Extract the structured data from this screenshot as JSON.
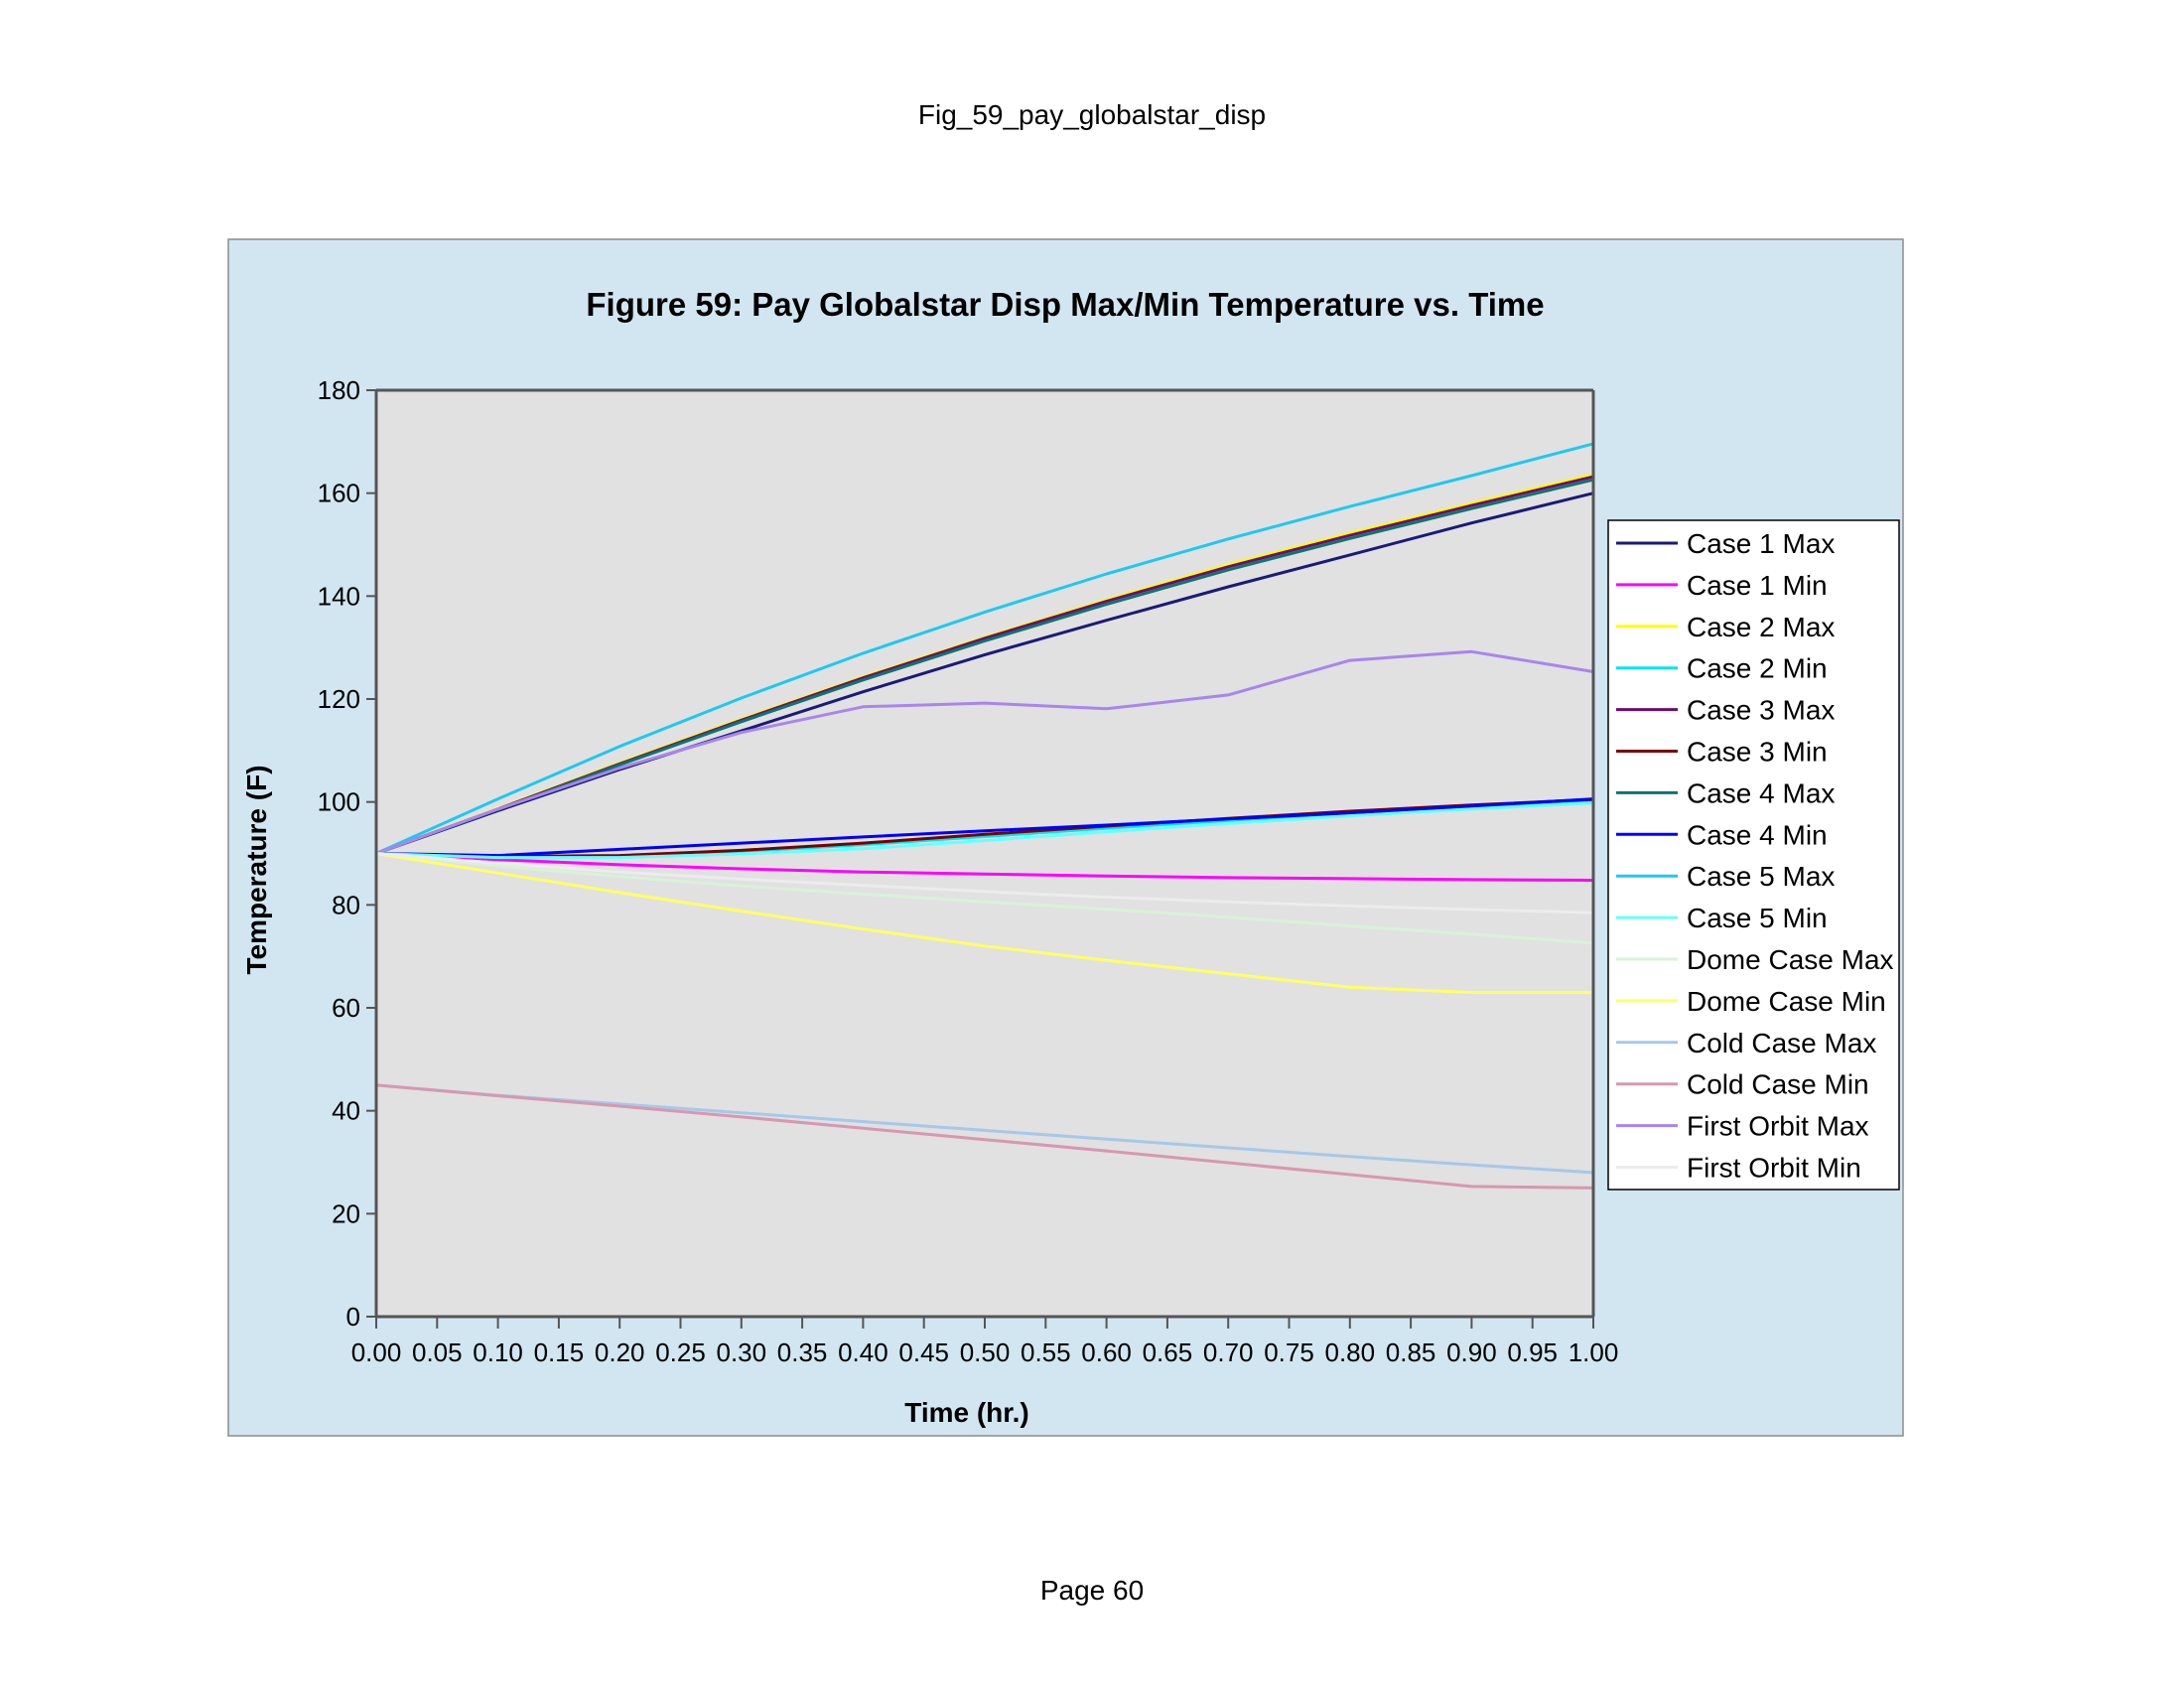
{
  "document": {
    "header": "Fig_59_pay_globalstar_disp",
    "footer": "Page 60"
  },
  "chart_data": {
    "type": "line",
    "title": "Figure 59: Pay Globalstar Disp Max/Min Temperature vs. Time",
    "xlabel": "Time (hr.)",
    "ylabel": "Temperature (F)",
    "xlim": [
      0,
      1
    ],
    "ylim": [
      0,
      180
    ],
    "x_ticks": [
      0,
      0.05,
      0.1,
      0.15,
      0.2,
      0.25,
      0.3,
      0.35,
      0.4,
      0.45,
      0.5,
      0.55,
      0.6,
      0.65,
      0.7,
      0.75,
      0.8,
      0.85,
      0.9,
      0.95,
      1.0
    ],
    "y_ticks": [
      0,
      20,
      40,
      60,
      80,
      100,
      120,
      140,
      160,
      180
    ],
    "grid": false,
    "legend_position": "right",
    "colors": {
      "page_background": "#ffffff",
      "chart_background": "#d1e6f1",
      "plot_background": "#e1e1e1",
      "axis": "#555555"
    },
    "x": [
      0,
      0.1,
      0.2,
      0.3,
      0.4,
      0.5,
      0.6,
      0.7,
      0.8,
      0.9,
      1.0
    ],
    "series": [
      {
        "name": "Case 1 Max",
        "color": "#1a1a7a",
        "values": [
          90,
          98.3,
          106.3,
          113.8,
          121.4,
          128.6,
          135.3,
          141.8,
          148.0,
          154.2,
          160.0
        ]
      },
      {
        "name": "Case 1 Min",
        "color": "#ff00ff",
        "values": [
          90,
          88.8,
          87.8,
          87.0,
          86.4,
          86.0,
          85.6,
          85.3,
          85.1,
          84.9,
          84.8
        ]
      },
      {
        "name": "Case 2 Max",
        "color": "#ffff00",
        "values": [
          90,
          98.7,
          107.6,
          116.1,
          124.3,
          132.0,
          139.3,
          146.1,
          152.2,
          158.0,
          163.6
        ]
      },
      {
        "name": "Case 2 Min",
        "color": "#00e5ee",
        "values": [
          90,
          89.3,
          89.5,
          90.4,
          91.7,
          93.3,
          94.9,
          96.4,
          97.9,
          99.1,
          100.3
        ]
      },
      {
        "name": "Case 3 Max",
        "color": "#6b0d6b",
        "values": [
          90,
          98.6,
          107.4,
          115.9,
          124.1,
          131.8,
          139.0,
          145.7,
          151.8,
          157.6,
          163.2
        ]
      },
      {
        "name": "Case 3 Min",
        "color": "#7a0000",
        "values": [
          90,
          89.4,
          89.6,
          90.6,
          92.0,
          93.7,
          95.3,
          96.8,
          98.2,
          99.4,
          100.5
        ]
      },
      {
        "name": "Case 4 Max",
        "color": "#0e7474",
        "values": [
          90,
          98.5,
          107.2,
          115.6,
          123.7,
          131.3,
          138.4,
          145.1,
          151.2,
          157.0,
          162.6
        ]
      },
      {
        "name": "Case 4 Min",
        "color": "#0000ff",
        "values": [
          90,
          89.6,
          90.8,
          92.0,
          93.2,
          94.4,
          95.5,
          96.7,
          97.9,
          99.2,
          100.6
        ]
      },
      {
        "name": "Case 5 Max",
        "color": "#1ec8f2",
        "values": [
          90,
          100.6,
          110.8,
          120.2,
          128.9,
          136.9,
          144.3,
          151.1,
          157.4,
          163.4,
          169.6
        ]
      },
      {
        "name": "Case 5 Min",
        "color": "#66ffff",
        "values": [
          90,
          89.2,
          89.2,
          89.9,
          90.9,
          92.5,
          94.2,
          95.8,
          97.3,
          98.6,
          99.8
        ]
      },
      {
        "name": "Dome Case Max",
        "color": "#d8f2d8",
        "values": [
          90,
          87.6,
          85.5,
          83.7,
          82.1,
          80.6,
          79.2,
          77.6,
          75.9,
          74.3,
          72.6
        ]
      },
      {
        "name": "Dome Case Min",
        "color": "#ffff66",
        "values": [
          90,
          86.2,
          82.4,
          78.8,
          75.3,
          72.0,
          69.2,
          66.6,
          64.0,
          63.0,
          63.0
        ]
      },
      {
        "name": "Cold Case Max",
        "color": "#a6c8ea",
        "values": [
          45,
          43.0,
          41.3,
          39.6,
          37.9,
          36.2,
          34.5,
          32.8,
          31.1,
          29.5,
          28.0
        ]
      },
      {
        "name": "Cold Case Min",
        "color": "#d897b0",
        "values": [
          45,
          42.9,
          40.9,
          38.8,
          36.6,
          34.4,
          32.2,
          29.9,
          27.6,
          25.3,
          25.0
        ]
      },
      {
        "name": "First Orbit Max",
        "color": "#a985ec",
        "values": [
          90,
          98.6,
          106.6,
          113.5,
          118.5,
          119.2,
          118.1,
          120.8,
          127.5,
          129.2,
          125.3
        ]
      },
      {
        "name": "First Orbit Min",
        "color": "#ececec",
        "values": [
          90,
          88.1,
          86.4,
          85.0,
          83.8,
          82.6,
          81.5,
          80.6,
          79.8,
          79.1,
          78.5
        ]
      }
    ]
  }
}
